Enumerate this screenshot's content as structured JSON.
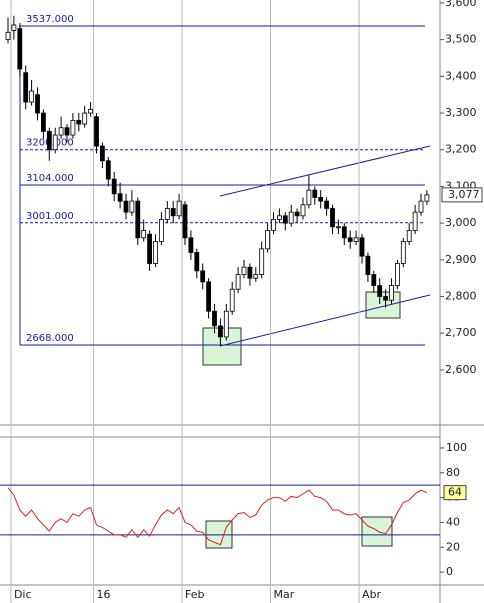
{
  "chart_data": {
    "type": "candlestick",
    "categories": [
      null,
      "Dic",
      null,
      null,
      null,
      null,
      null,
      null,
      null,
      null,
      null,
      null,
      null,
      null,
      null,
      "16",
      null,
      null,
      null,
      null,
      null,
      null,
      null,
      null,
      null,
      null,
      null,
      null,
      null,
      null,
      "Feb",
      null,
      null,
      null,
      null,
      null,
      null,
      null,
      null,
      null,
      null,
      null,
      null,
      null,
      null,
      "Mar",
      null,
      null,
      null,
      null,
      null,
      null,
      null,
      null,
      null,
      null,
      null,
      null,
      null,
      null,
      "Abr",
      null,
      null,
      null,
      null,
      null,
      null,
      null,
      null,
      null,
      null,
      null
    ],
    "ohlc": [
      [
        3500,
        3560,
        3490,
        3520
      ],
      [
        3525,
        3565,
        3500,
        3540
      ],
      [
        3530,
        3540,
        3400,
        3420
      ],
      [
        3410,
        3430,
        3310,
        3330
      ],
      [
        3330,
        3390,
        3320,
        3360
      ],
      [
        3350,
        3370,
        3280,
        3300
      ],
      [
        3300,
        3310,
        3230,
        3250
      ],
      [
        3250,
        3260,
        3170,
        3200
      ],
      [
        3200,
        3260,
        3190,
        3240
      ],
      [
        3240,
        3290,
        3230,
        3260
      ],
      [
        3260,
        3270,
        3220,
        3240
      ],
      [
        3240,
        3300,
        3230,
        3280
      ],
      [
        3280,
        3300,
        3250,
        3270
      ],
      [
        3270,
        3320,
        3260,
        3300
      ],
      [
        3300,
        3330,
        3290,
        3310
      ],
      [
        3290,
        3300,
        3190,
        3210
      ],
      [
        3210,
        3220,
        3150,
        3170
      ],
      [
        3170,
        3180,
        3100,
        3120
      ],
      [
        3120,
        3140,
        3060,
        3080
      ],
      [
        3080,
        3110,
        3040,
        3060
      ],
      [
        3060,
        3080,
        3010,
        3030
      ],
      [
        3030,
        3090,
        3020,
        3060
      ],
      [
        3060,
        3070,
        2940,
        2960
      ],
      [
        2960,
        3010,
        2950,
        2980
      ],
      [
        2970,
        2980,
        2870,
        2890
      ],
      [
        2890,
        2970,
        2880,
        2950
      ],
      [
        2950,
        3030,
        2940,
        3010
      ],
      [
        3010,
        3060,
        3000,
        3040
      ],
      [
        3040,
        3060,
        3000,
        3020
      ],
      [
        3020,
        3080,
        3010,
        3060
      ],
      [
        3050,
        3060,
        2940,
        2960
      ],
      [
        2960,
        2980,
        2900,
        2920
      ],
      [
        2920,
        2930,
        2850,
        2870
      ],
      [
        2870,
        2890,
        2820,
        2840
      ],
      [
        2840,
        2850,
        2740,
        2760
      ],
      [
        2760,
        2780,
        2700,
        2720
      ],
      [
        2720,
        2740,
        2668,
        2690
      ],
      [
        2690,
        2780,
        2680,
        2760
      ],
      [
        2760,
        2840,
        2750,
        2820
      ],
      [
        2820,
        2880,
        2810,
        2860
      ],
      [
        2860,
        2900,
        2850,
        2880
      ],
      [
        2880,
        2890,
        2830,
        2850
      ],
      [
        2850,
        2880,
        2840,
        2860
      ],
      [
        2860,
        2950,
        2850,
        2930
      ],
      [
        2930,
        3000,
        2920,
        2980
      ],
      [
        2980,
        3030,
        2970,
        3010
      ],
      [
        3010,
        3040,
        3000,
        3020
      ],
      [
        3020,
        3030,
        2980,
        3000
      ],
      [
        3000,
        3050,
        2990,
        3030
      ],
      [
        3030,
        3040,
        3000,
        3020
      ],
      [
        3020,
        3070,
        3010,
        3050
      ],
      [
        3050,
        3130,
        3040,
        3090
      ],
      [
        3090,
        3100,
        3050,
        3070
      ],
      [
        3070,
        3090,
        3040,
        3060
      ],
      [
        3060,
        3070,
        3020,
        3040
      ],
      [
        3040,
        3050,
        2970,
        2990
      ],
      [
        2990,
        3010,
        2970,
        2990
      ],
      [
        2990,
        3000,
        2940,
        2960
      ],
      [
        2960,
        2980,
        2930,
        2950
      ],
      [
        2950,
        2980,
        2940,
        2960
      ],
      [
        2960,
        2970,
        2890,
        2910
      ],
      [
        2910,
        2920,
        2840,
        2860
      ],
      [
        2860,
        2870,
        2810,
        2830
      ],
      [
        2830,
        2850,
        2780,
        2800
      ],
      [
        2800,
        2820,
        2770,
        2790
      ],
      [
        2790,
        2850,
        2780,
        2830
      ],
      [
        2830,
        2900,
        2820,
        2890
      ],
      [
        2890,
        2960,
        2880,
        2950
      ],
      [
        2950,
        3000,
        2940,
        2980
      ],
      [
        2980,
        3050,
        2970,
        3030
      ],
      [
        3030,
        3080,
        3020,
        3060
      ],
      [
        3060,
        3090,
        3050,
        3077
      ]
    ],
    "ylim": [
      2450,
      3608
    ],
    "yticks": [
      {
        "value": 2600,
        "label": "2,600"
      },
      {
        "value": 2700,
        "label": "2,700"
      },
      {
        "value": 2800,
        "label": "2,800"
      },
      {
        "value": 2900,
        "label": "2,900"
      },
      {
        "value": 3000,
        "label": "3,000"
      },
      {
        "value": 3100,
        "label": "3,100"
      },
      {
        "value": 3200,
        "label": "3,200"
      },
      {
        "value": 3300,
        "label": "3,300"
      },
      {
        "value": 3400,
        "label": "3,400"
      },
      {
        "value": 3500,
        "label": "3,500"
      },
      {
        "value": 3600,
        "label": "3,600"
      }
    ],
    "levels": [
      {
        "value": 3537,
        "label": "3537.000",
        "style": "solid"
      },
      {
        "value": 3200,
        "label": "3200.000",
        "style": "dashed"
      },
      {
        "value": 3104,
        "label": "3104.000",
        "style": "solid"
      },
      {
        "value": 3001,
        "label": "3001.000",
        "style": "dashed"
      },
      {
        "value": 2668,
        "label": "2668.000",
        "style": "solid"
      }
    ],
    "level_color": "#1a1aa0",
    "last_price": {
      "value": 3077,
      "label": "3,077"
    },
    "rsi": {
      "color": "#e02020",
      "values": [
        68,
        62,
        50,
        45,
        50,
        43,
        38,
        33,
        40,
        43,
        40,
        47,
        45,
        50,
        52,
        38,
        36,
        33,
        30,
        30,
        28,
        34,
        28,
        34,
        29,
        38,
        46,
        50,
        47,
        52,
        40,
        38,
        33,
        32,
        26,
        24,
        22,
        36,
        42,
        47,
        48,
        44,
        46,
        54,
        58,
        60,
        60,
        57,
        61,
        60,
        63,
        66,
        61,
        60,
        57,
        50,
        50,
        47,
        46,
        47,
        42,
        37,
        35,
        32,
        31,
        38,
        48,
        56,
        58,
        63,
        66,
        64
      ],
      "ylim": [
        -10.4,
        108.8
      ],
      "yticks": [
        0,
        20,
        40,
        60,
        80,
        100
      ],
      "lines": [
        70,
        30
      ],
      "last": 64
    }
  }
}
